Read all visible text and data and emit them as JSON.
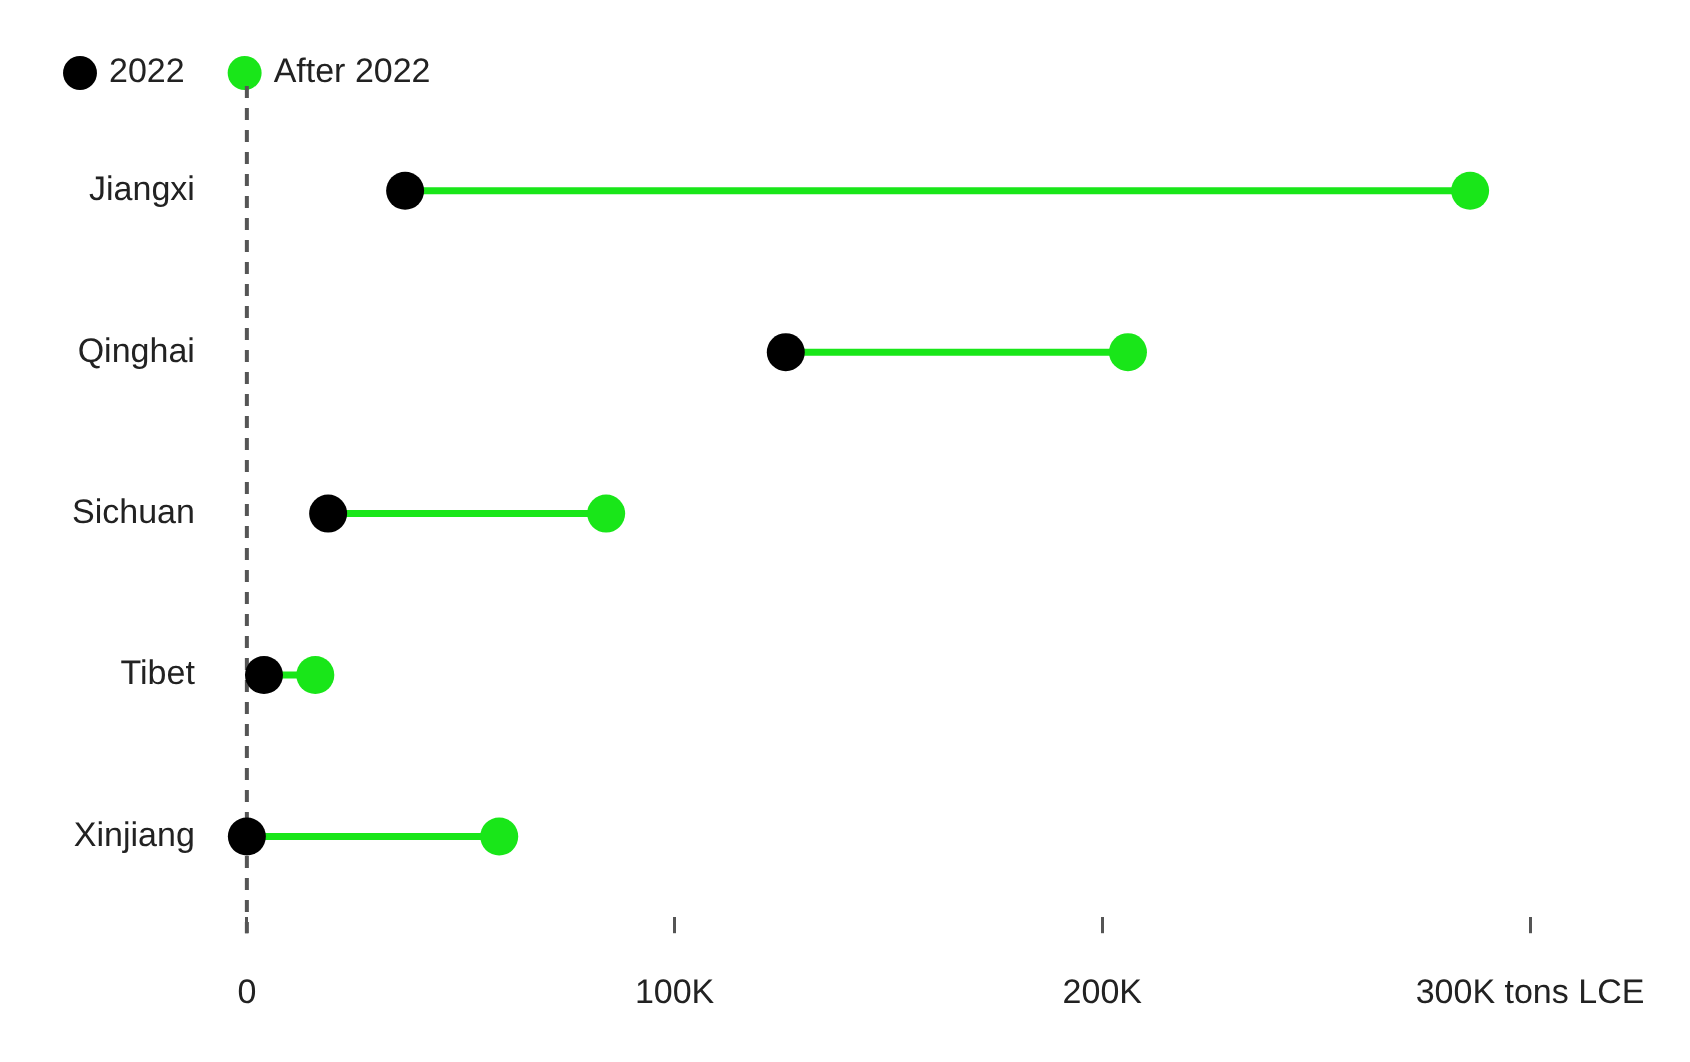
{
  "chart_data": {
    "type": "scatter",
    "orientation": "horizontal",
    "categories": [
      "Jiangxi",
      "Qinghai",
      "Sichuan",
      "Tibet",
      "Xinjiang"
    ],
    "series": [
      {
        "name": "2022",
        "color": "#000000",
        "values": [
          37000,
          126000,
          19000,
          4000,
          0
        ]
      },
      {
        "name": "After 2022",
        "color": "#19e619",
        "values": [
          286000,
          206000,
          84000,
          16000,
          59000
        ]
      }
    ],
    "xlim": [
      0,
      300000
    ],
    "xticks": [
      0,
      {
        "value": 100000,
        "label": "100K"
      },
      {
        "value": 200000,
        "label": "200K"
      },
      {
        "value": 300000,
        "label": "300K tons LCE"
      }
    ],
    "ref_lines": [
      {
        "axis": "x",
        "value": 0,
        "line_style": "dashed",
        "color": "#555555"
      }
    ],
    "legend": "top left",
    "marker": "circle",
    "grid": false
  }
}
